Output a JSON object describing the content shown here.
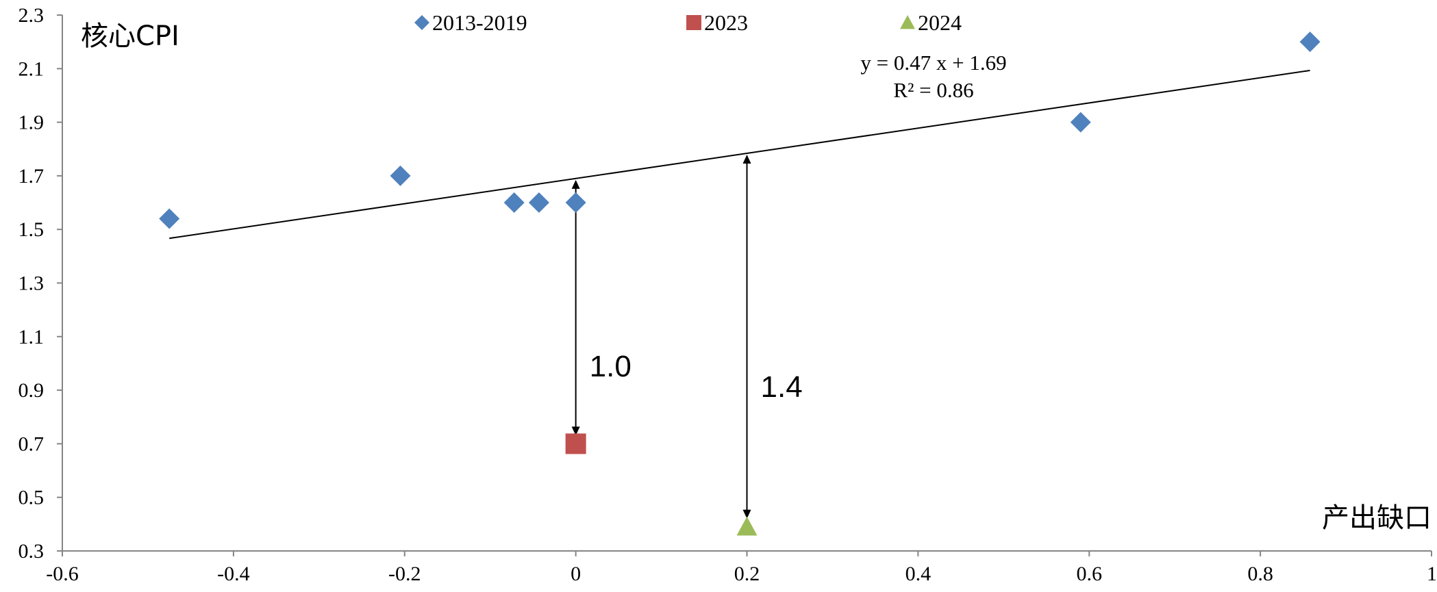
{
  "chart_data": {
    "type": "scatter",
    "ylabel": "核心CPI",
    "xlabel": "产出缺口",
    "xlim": [
      -0.6,
      1
    ],
    "ylim": [
      0.3,
      2.3
    ],
    "x_ticks": [
      "-0.6",
      "-0.4",
      "-0.2",
      "0",
      "0.2",
      "0.4",
      "0.6",
      "0.8",
      "1"
    ],
    "y_ticks": [
      "0.3",
      "0.5",
      "0.7",
      "0.9",
      "1.1",
      "1.3",
      "1.5",
      "1.7",
      "1.9",
      "2.1",
      "2.3"
    ],
    "grid": false,
    "legend_position": "top",
    "series": [
      {
        "name": "2013-2019",
        "marker": "diamond",
        "color": "#4F81BD",
        "points": [
          {
            "x": -0.475,
            "y": 1.54
          },
          {
            "x": -0.205,
            "y": 1.7
          },
          {
            "x": -0.072,
            "y": 1.6
          },
          {
            "x": -0.043,
            "y": 1.6
          },
          {
            "x": 0.0,
            "y": 1.6
          },
          {
            "x": 0.59,
            "y": 1.9
          },
          {
            "x": 0.858,
            "y": 2.2
          }
        ]
      },
      {
        "name": "2023",
        "marker": "square",
        "color": "#C0504D",
        "points": [
          {
            "x": 0.0,
            "y": 0.7
          }
        ]
      },
      {
        "name": "2024",
        "marker": "triangle",
        "color": "#9BBB59",
        "points": [
          {
            "x": 0.2,
            "y": 0.39
          }
        ]
      }
    ],
    "trendline": {
      "slope": 0.47,
      "intercept": 1.69,
      "x_range": [
        -0.475,
        0.858
      ],
      "equation": "y = 0.47 x + 1.69",
      "r_squared": "R² = 0.86"
    },
    "annotations": [
      {
        "label": "1.0",
        "x": 0.0,
        "y_from": 1.69,
        "y_to": 0.7
      },
      {
        "label": "1.4",
        "x": 0.2,
        "y_from": 1.784,
        "y_to": 0.39
      }
    ]
  }
}
